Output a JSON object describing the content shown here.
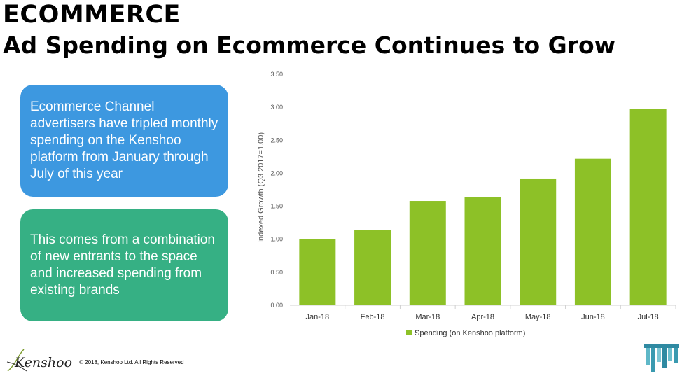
{
  "header": {
    "title_line1": "ECOMMERCE",
    "title_line2": "Ad Spending on Ecommerce Continues to Grow"
  },
  "callouts": [
    {
      "text": "Ecommerce Channel advertisers have tripled monthly spending on the Kenshoo platform from January through July of this year",
      "color": "#3d98e0"
    },
    {
      "text": "This comes from a combination of new entrants to the space and increased spending from existing brands",
      "color": "#36b084"
    }
  ],
  "footer": {
    "logo_text": "Kenshoo",
    "copyright": "© 2018, Kenshoo Ltd. All Rights Reserved"
  },
  "colors": {
    "bar": "#8dc127",
    "axis": "#d0d0d0",
    "tick_text": "#555555"
  },
  "chart_data": {
    "type": "bar",
    "categories": [
      "Jan-18",
      "Feb-18",
      "Mar-18",
      "Apr-18",
      "May-18",
      "Jun-18",
      "Jul-18"
    ],
    "series": [
      {
        "name": "Spending (on Kenshoo platform)",
        "values": [
          1.0,
          1.14,
          1.58,
          1.64,
          1.92,
          2.22,
          2.98
        ]
      }
    ],
    "ylabel": "Indexed Growth (Q3 2017=1.00)",
    "xlabel": "",
    "ylim": [
      0,
      3.5
    ],
    "yticks": [
      "0.00",
      "0.50",
      "1.00",
      "1.50",
      "2.00",
      "2.50",
      "3.00",
      "3.50"
    ],
    "grid": false,
    "legend_position": "bottom"
  }
}
